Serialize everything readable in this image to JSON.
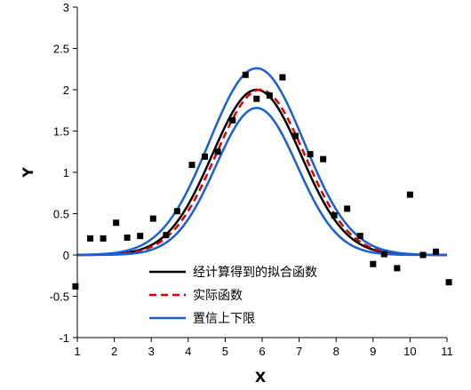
{
  "chart_data": {
    "type": "scatter",
    "xlabel": "X",
    "ylabel": "Y",
    "xlim": [
      1,
      11
    ],
    "ylim": [
      -1,
      3
    ],
    "xticks": [
      "1",
      "2",
      "3",
      "4",
      "5",
      "6",
      "7",
      "8",
      "9",
      "10",
      "11"
    ],
    "yticks": [
      "-1",
      "-0.5",
      "0",
      "0.5",
      "1",
      "1.5",
      "2",
      "2.5",
      "3"
    ],
    "grid": false,
    "legend_position": "bottom-center",
    "points": {
      "name": "",
      "color": "#000000",
      "x": [
        0.95,
        1.35,
        1.7,
        2.05,
        2.35,
        2.7,
        3.05,
        3.4,
        3.7,
        4.1,
        4.45,
        4.8,
        5.2,
        5.55,
        5.85,
        6.2,
        6.55,
        6.9,
        7.3,
        7.65,
        7.95,
        8.3,
        8.65,
        9.0,
        9.3,
        9.65,
        10.0,
        10.35,
        10.7,
        11.05
      ],
      "y": [
        -0.38,
        0.2,
        0.2,
        0.39,
        0.21,
        0.23,
        0.44,
        0.24,
        0.53,
        1.09,
        1.19,
        1.25,
        1.63,
        2.18,
        1.89,
        1.93,
        2.15,
        1.44,
        1.22,
        1.16,
        0.48,
        0.56,
        0.23,
        -0.11,
        0.01,
        -0.16,
        0.73,
        0.0,
        0.04,
        -0.33
      ]
    },
    "series": [
      {
        "name": "经计算得到的拟合函数",
        "color": "#000000",
        "style": "solid",
        "amplitude": 2.0,
        "center": 5.85,
        "sigma": 1.2
      },
      {
        "name": "实际函数",
        "color": "#dd0000",
        "style": "dashed",
        "amplitude": 2.0,
        "center": 5.95,
        "sigma": 1.2
      },
      {
        "name": "置信上下限",
        "color": "#1a5fd6",
        "style": "solid",
        "amplitude": 2.26,
        "center": 5.85,
        "sigma": 1.28
      },
      {
        "name": "置信上下限",
        "color": "#1a5fd6",
        "style": "solid",
        "amplitude": 1.78,
        "center": 5.85,
        "sigma": 1.1
      }
    ]
  }
}
